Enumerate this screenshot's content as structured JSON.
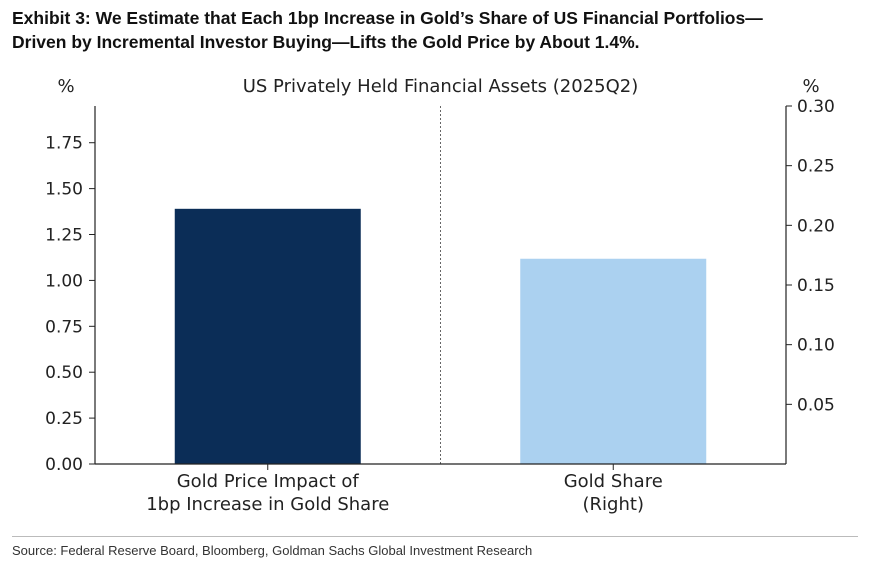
{
  "exhibit": {
    "title_line1": "Exhibit 3: We Estimate that Each 1bp Increase in Gold’s Share of US Financial Portfolios—",
    "title_line2": "Driven by Incremental Investor Buying—Lifts the Gold Price by About 1.4%."
  },
  "chart_data": {
    "type": "bar",
    "title": "US Privately Held Financial Assets (2025Q2)",
    "y_left_unit": "%",
    "y_right_unit": "%",
    "categories": [
      [
        "Gold Price Impact of",
        "1bp Increase in Gold Share"
      ],
      [
        "Gold Share",
        "(Right)"
      ]
    ],
    "values": [
      1.39,
      0.172
    ],
    "axes": [
      "left",
      "right"
    ],
    "colors": [
      "#0b2d57",
      "#abd1f0"
    ],
    "left_axis": {
      "ylim": [
        0,
        1.95
      ],
      "ticks": [
        0.0,
        0.25,
        0.5,
        0.75,
        1.0,
        1.25,
        1.5,
        1.75
      ],
      "tick_labels": [
        "0.00",
        "0.25",
        "0.50",
        "0.75",
        "1.00",
        "1.25",
        "1.50",
        "1.75"
      ]
    },
    "right_axis": {
      "ylim": [
        0,
        0.3
      ],
      "ticks": [
        0.05,
        0.1,
        0.15,
        0.2,
        0.25,
        0.3
      ],
      "tick_labels": [
        "0.05",
        "0.10",
        "0.15",
        "0.20",
        "0.25",
        "0.30"
      ]
    },
    "grid": false,
    "divider": "dotted vertical line between categories"
  },
  "source": "Source: Federal Reserve Board, Bloomberg, Goldman Sachs Global Investment Research"
}
